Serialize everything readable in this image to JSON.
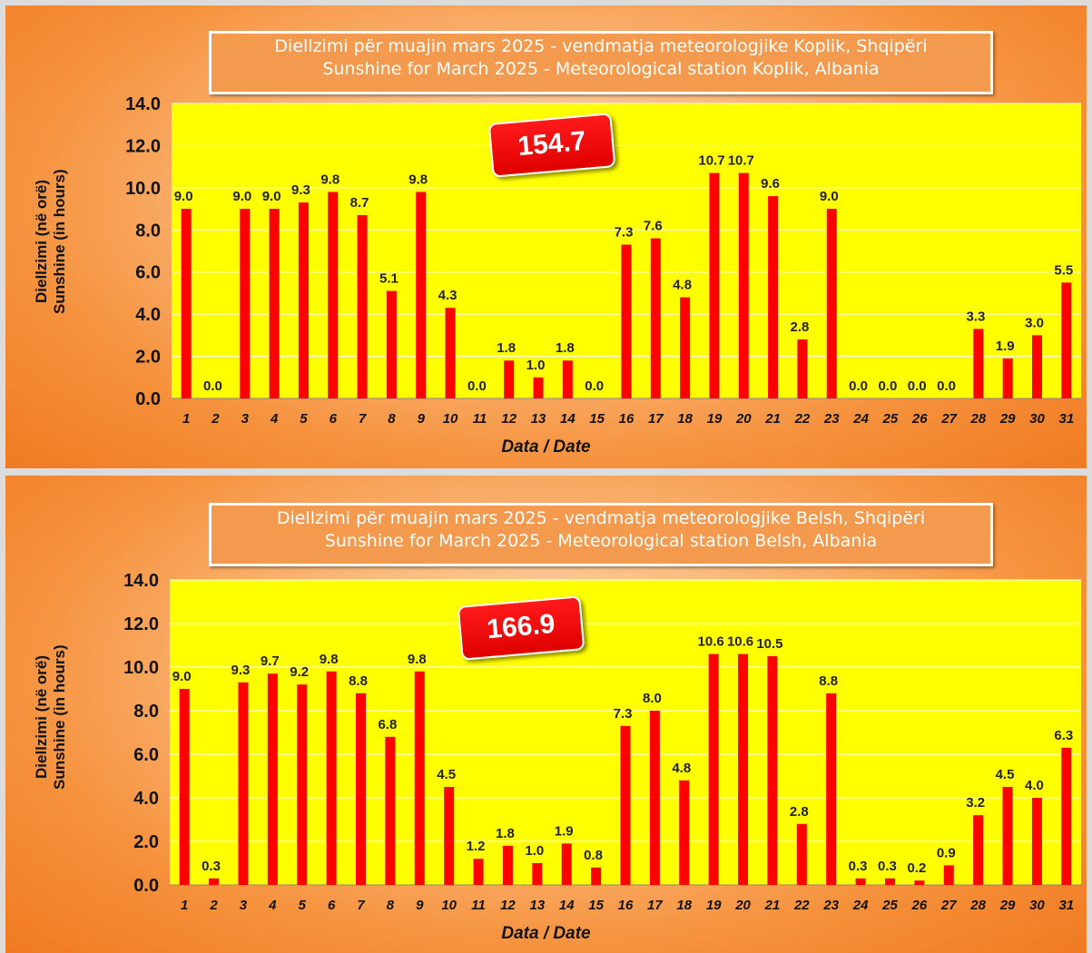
{
  "chart_data": [
    {
      "type": "bar",
      "title": "Diellzimi për muajin mars 2025 - vendmatja meteorologjike Koplik, Shqipëri",
      "subtitle": "Sunshine for March 2025 - Meteorological station Koplik, Albania",
      "ylabel": "Diellzimi (në orë)",
      "ylabel2": "Sunshine (in hours)",
      "xlabel": "Data / Date",
      "total": "154.7",
      "ylim": [
        0,
        14
      ],
      "yticks": [
        "0.0",
        "2.0",
        "4.0",
        "6.0",
        "8.0",
        "10.0",
        "12.0",
        "14.0"
      ],
      "categories": [
        "1",
        "2",
        "3",
        "4",
        "5",
        "6",
        "7",
        "8",
        "9",
        "10",
        "11",
        "12",
        "13",
        "14",
        "15",
        "16",
        "17",
        "18",
        "19",
        "20",
        "21",
        "22",
        "23",
        "24",
        "25",
        "26",
        "27",
        "28",
        "29",
        "30",
        "31"
      ],
      "values": [
        9.0,
        0.0,
        9.0,
        9.0,
        9.3,
        9.8,
        8.7,
        5.1,
        9.8,
        4.3,
        0.0,
        1.8,
        1.0,
        1.8,
        0.0,
        7.3,
        7.6,
        4.8,
        10.7,
        10.7,
        9.6,
        2.8,
        9.0,
        0.0,
        0.0,
        0.0,
        0.0,
        3.3,
        1.9,
        3.0,
        5.5
      ],
      "colors": {
        "bar": "#ff0000",
        "plot_bg": "#ffff00",
        "grid": "#ffffff"
      },
      "grid": true
    },
    {
      "type": "bar",
      "title": "Diellzimi për muajin mars 2025 - vendmatja meteorologjike Belsh, Shqipëri",
      "subtitle": "Sunshine for March 2025 - Meteorological station Belsh, Albania",
      "ylabel": "Diellzimi (në orë)",
      "ylabel2": "Sunshine (in hours)",
      "xlabel": "Data / Date",
      "total": "166.9",
      "ylim": [
        0,
        14
      ],
      "yticks": [
        "0.0",
        "2.0",
        "4.0",
        "6.0",
        "8.0",
        "10.0",
        "12.0",
        "14.0"
      ],
      "categories": [
        "1",
        "2",
        "3",
        "4",
        "5",
        "6",
        "7",
        "8",
        "9",
        "10",
        "11",
        "12",
        "13",
        "14",
        "15",
        "16",
        "17",
        "18",
        "19",
        "20",
        "21",
        "22",
        "23",
        "24",
        "25",
        "26",
        "27",
        "28",
        "29",
        "30",
        "31"
      ],
      "values": [
        9.0,
        0.3,
        9.3,
        9.7,
        9.2,
        9.8,
        8.8,
        6.8,
        9.8,
        4.5,
        1.2,
        1.8,
        1.0,
        1.9,
        0.8,
        7.3,
        8.0,
        4.8,
        10.6,
        10.6,
        10.5,
        2.8,
        8.8,
        0.3,
        0.3,
        0.2,
        0.9,
        3.2,
        4.5,
        4.0,
        6.3
      ],
      "colors": {
        "bar": "#ff0000",
        "plot_bg": "#ffff00",
        "grid": "#ffffff"
      },
      "grid": true
    }
  ]
}
